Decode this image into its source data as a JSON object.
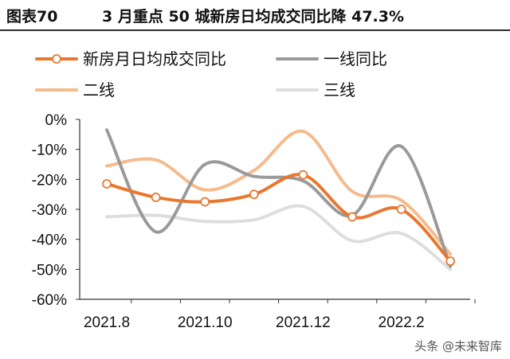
{
  "header": {
    "figure_no": "图表70",
    "title": "3 月重点 50 城新房日均成交同比降 47.3%"
  },
  "watermark": "头条 @未来智库",
  "colors": {
    "total": "#E8782F",
    "tier1": "#9A9A9A",
    "tier2": "#F5BB8C",
    "tier3": "#DDDDDD"
  },
  "chart_data": {
    "type": "line",
    "title": "3 月重点 50 城新房日均成交同比降 47.3%",
    "x": [
      "2021.8",
      "2021.9",
      "2021.10",
      "2021.11",
      "2021.12",
      "2022.1",
      "2022.2",
      "2022.3"
    ],
    "x_tick_labels": [
      "2021.8",
      "2021.10",
      "2021.12",
      "2022.2"
    ],
    "y_tick_labels": [
      "0%",
      "-10%",
      "-20%",
      "-30%",
      "-40%",
      "-50%",
      "-60%"
    ],
    "ylim": [
      -60,
      0
    ],
    "y_unit": "%",
    "grid": false,
    "legend_position": "top",
    "series": [
      {
        "name": "新房月日均成交同比",
        "key": "total",
        "markers": true,
        "values": [
          -21.5,
          -26,
          -27.5,
          -25,
          -18.5,
          -32.5,
          -30,
          -47.3
        ]
      },
      {
        "name": "一线同比",
        "key": "tier1",
        "markers": false,
        "values": [
          -3.5,
          -37.5,
          -15,
          -19,
          -20.5,
          -32,
          -9,
          -49
        ]
      },
      {
        "name": "二线",
        "key": "tier2",
        "markers": false,
        "values": [
          -15.5,
          -13.5,
          -23.5,
          -17,
          -4,
          -24,
          -27,
          -45
        ]
      },
      {
        "name": "三线",
        "key": "tier3",
        "markers": false,
        "values": [
          -32.5,
          -32,
          -34,
          -33.5,
          -29,
          -40.5,
          -38,
          -50
        ]
      }
    ]
  }
}
